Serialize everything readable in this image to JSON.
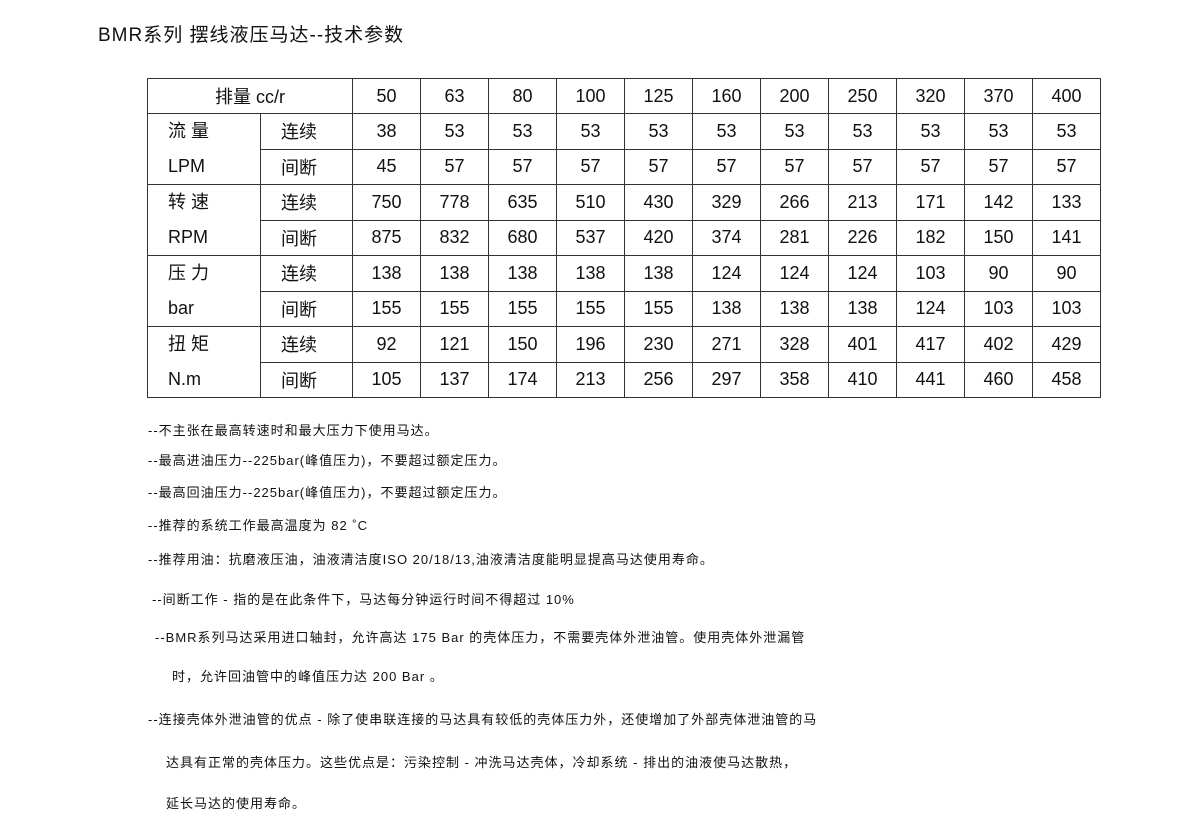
{
  "title": "BMR系列 摆线液压马达--技术参数",
  "table": {
    "header_label": "排量 cc/r",
    "displacements": [
      "50",
      "63",
      "80",
      "100",
      "125",
      "160",
      "200",
      "250",
      "320",
      "370",
      "400"
    ],
    "groups": [
      {
        "name": "流 量",
        "unit": "LPM",
        "rows": [
          {
            "label": "连续",
            "values": [
              "38",
              "53",
              "53",
              "53",
              "53",
              "53",
              "53",
              "53",
              "53",
              "53",
              "53"
            ]
          },
          {
            "label": "间断",
            "values": [
              "45",
              "57",
              "57",
              "57",
              "57",
              "57",
              "57",
              "57",
              "57",
              "57",
              "57"
            ]
          }
        ]
      },
      {
        "name": "转 速",
        "unit": "RPM",
        "rows": [
          {
            "label": "连续",
            "values": [
              "750",
              "778",
              "635",
              "510",
              "430",
              "329",
              "266",
              "213",
              "171",
              "142",
              "133"
            ]
          },
          {
            "label": "间断",
            "values": [
              "875",
              "832",
              "680",
              "537",
              "420",
              "374",
              "281",
              "226",
              "182",
              "150",
              "141"
            ]
          }
        ]
      },
      {
        "name": "压 力",
        "unit": "bar",
        "rows": [
          {
            "label": "连续",
            "values": [
              "138",
              "138",
              "138",
              "138",
              "138",
              "124",
              "124",
              "124",
              "103",
              "90",
              "90"
            ]
          },
          {
            "label": "间断",
            "values": [
              "155",
              "155",
              "155",
              "155",
              "155",
              "138",
              "138",
              "138",
              "124",
              "103",
              "103"
            ]
          }
        ]
      },
      {
        "name": "扭 矩",
        "unit": "N.m",
        "rows": [
          {
            "label": "连续",
            "values": [
              "92",
              "121",
              "150",
              "196",
              "230",
              "271",
              "328",
              "401",
              "417",
              "402",
              "429"
            ]
          },
          {
            "label": "间断",
            "values": [
              "105",
              "137",
              "174",
              "213",
              "256",
              "297",
              "358",
              "410",
              "441",
              "460",
              "458"
            ]
          }
        ]
      }
    ]
  },
  "notes": [
    "--不主张在最高转速时和最大压力下使用马达。",
    "--最高进油压力--225bar(峰值压力)，不要超过额定压力。",
    "--最高回油压力--225bar(峰值压力)，不要超过额定压力。",
    "--推荐的系统工作最高温度为 82 ˚C",
    "--推荐用油：抗磨液压油，油液清洁度ISO 20/18/13,油液清洁度能明显提高马达使用寿命。",
    "--间断工作 - 指的是在此条件下，马达每分钟运行时间不得超过 10%",
    "--BMR系列马达采用进口轴封，允许高达 175 Bar 的壳体压力，不需要壳体外泄油管。使用壳体外泄漏管",
    "时，允许回油管中的峰值压力达 200 Bar 。",
    "--连接壳体外泄油管的优点 - 除了使串联连接的马达具有较低的壳体压力外，还使增加了外部壳体泄油管的马",
    "达具有正常的壳体压力。这些优点是：污染控制 - 冲洗马达壳体，冷却系统 - 排出的油液使马达散热，",
    "延长马达的使用寿命。"
  ]
}
